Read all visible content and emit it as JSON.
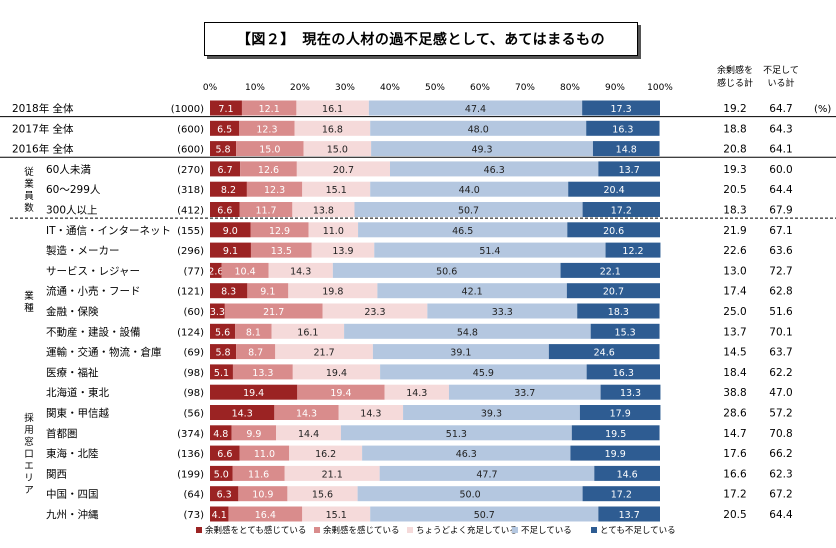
{
  "title": "【図２】　現在の人材の過不足感として、あてはまるもの",
  "unit_label": "(%)",
  "summary_headers": [
    {
      "line1": "余剰感を",
      "line2": "感じる計"
    },
    {
      "line1": "不足して",
      "line2": "いる計"
    }
  ],
  "group_labels": [
    {
      "name": "従業員数",
      "chars": [
        "従",
        "業",
        "員",
        "数"
      ]
    },
    {
      "name": "業種",
      "chars": [
        "業",
        "種"
      ]
    },
    {
      "name": "採用窓口エリア",
      "chars": [
        "採",
        "用",
        "窓",
        "口",
        "エ",
        "リ",
        "ア"
      ]
    }
  ],
  "colors": [
    "#9b2323",
    "#d98c8c",
    "#f5dada",
    "#b4c7e0",
    "#2e5c92"
  ],
  "chart_data": {
    "type": "bar",
    "stacked": true,
    "orientation": "horizontal",
    "xlim": [
      0,
      100
    ],
    "x_ticks": [
      "0%",
      "10%",
      "20%",
      "30%",
      "40%",
      "50%",
      "60%",
      "70%",
      "80%",
      "90%",
      "100%"
    ],
    "series": [
      {
        "name": "余剰感をとても感じている"
      },
      {
        "name": "余剰感を感じている"
      },
      {
        "name": "ちょうどよく充足している"
      },
      {
        "name": "不足している"
      },
      {
        "name": "とても不足している"
      }
    ],
    "rows": [
      {
        "label": "2018年 全体",
        "n": "(1000)",
        "values": [
          7.1,
          12.1,
          16.1,
          47.4,
          17.3
        ],
        "surplus": "19.2",
        "shortage": "64.7"
      },
      {
        "label": "2017年 全体",
        "n": "(600)",
        "values": [
          6.5,
          12.3,
          16.8,
          48.0,
          16.3
        ],
        "surplus": "18.8",
        "shortage": "64.3"
      },
      {
        "label": "2016年 全体",
        "n": "(600)",
        "values": [
          5.8,
          15.0,
          15.0,
          49.3,
          14.8
        ],
        "surplus": "20.8",
        "shortage": "64.1"
      },
      {
        "label": "60人未満",
        "n": "(270)",
        "values": [
          6.7,
          12.6,
          20.7,
          46.3,
          13.7
        ],
        "surplus": "19.3",
        "shortage": "60.0"
      },
      {
        "label": "60～299人",
        "n": "(318)",
        "values": [
          8.2,
          12.3,
          15.1,
          44.0,
          20.4
        ],
        "surplus": "20.5",
        "shortage": "64.4"
      },
      {
        "label": "300人以上",
        "n": "(412)",
        "values": [
          6.6,
          11.7,
          13.8,
          50.7,
          17.2
        ],
        "surplus": "18.3",
        "shortage": "67.9"
      },
      {
        "label": "IT・通信・インターネット",
        "n": "(155)",
        "values": [
          9.0,
          12.9,
          11.0,
          46.5,
          20.6
        ],
        "surplus": "21.9",
        "shortage": "67.1"
      },
      {
        "label": "製造・メーカー",
        "n": "(296)",
        "values": [
          9.1,
          13.5,
          13.9,
          51.4,
          12.2
        ],
        "surplus": "22.6",
        "shortage": "63.6"
      },
      {
        "label": "サービス・レジャー",
        "n": "(77)",
        "values": [
          2.6,
          10.4,
          14.3,
          50.6,
          22.1
        ],
        "surplus": "13.0",
        "shortage": "72.7"
      },
      {
        "label": "流通・小売・フード",
        "n": "(121)",
        "values": [
          8.3,
          9.1,
          19.8,
          42.1,
          20.7
        ],
        "surplus": "17.4",
        "shortage": "62.8"
      },
      {
        "label": "金融・保険",
        "n": "(60)",
        "values": [
          3.3,
          21.7,
          23.3,
          33.3,
          18.3
        ],
        "surplus": "25.0",
        "shortage": "51.6"
      },
      {
        "label": "不動産・建設・設備",
        "n": "(124)",
        "values": [
          5.6,
          8.1,
          16.1,
          54.8,
          15.3
        ],
        "surplus": "13.7",
        "shortage": "70.1"
      },
      {
        "label": "運輸・交通・物流・倉庫",
        "n": "(69)",
        "values": [
          5.8,
          8.7,
          21.7,
          39.1,
          24.6
        ],
        "surplus": "14.5",
        "shortage": "63.7"
      },
      {
        "label": "医療・福祉",
        "n": "(98)",
        "values": [
          5.1,
          13.3,
          19.4,
          45.9,
          16.3
        ],
        "surplus": "18.4",
        "shortage": "62.2"
      },
      {
        "label": "北海道・東北",
        "n": "(98)",
        "values": [
          19.4,
          19.4,
          14.3,
          33.7,
          13.3
        ],
        "surplus": "38.8",
        "shortage": "47.0"
      },
      {
        "label": "関東・甲信越",
        "n": "(56)",
        "values": [
          14.3,
          14.3,
          14.3,
          39.3,
          17.9
        ],
        "surplus": "28.6",
        "shortage": "57.2"
      },
      {
        "label": "首都圏",
        "n": "(374)",
        "values": [
          4.8,
          9.9,
          14.4,
          51.3,
          19.5
        ],
        "surplus": "14.7",
        "shortage": "70.8"
      },
      {
        "label": "東海・北陸",
        "n": "(136)",
        "values": [
          6.6,
          11.0,
          16.2,
          46.3,
          19.9
        ],
        "surplus": "17.6",
        "shortage": "66.2"
      },
      {
        "label": "関西",
        "n": "(199)",
        "values": [
          5.0,
          11.6,
          21.1,
          47.7,
          14.6
        ],
        "surplus": "16.6",
        "shortage": "62.3"
      },
      {
        "label": "中国・四国",
        "n": "(64)",
        "values": [
          6.3,
          10.9,
          15.6,
          50.0,
          17.2
        ],
        "surplus": "17.2",
        "shortage": "67.2"
      },
      {
        "label": "九州・沖縄",
        "n": "(73)",
        "values": [
          4.1,
          16.4,
          15.1,
          50.7,
          13.7
        ],
        "surplus": "20.5",
        "shortage": "64.4"
      }
    ]
  }
}
